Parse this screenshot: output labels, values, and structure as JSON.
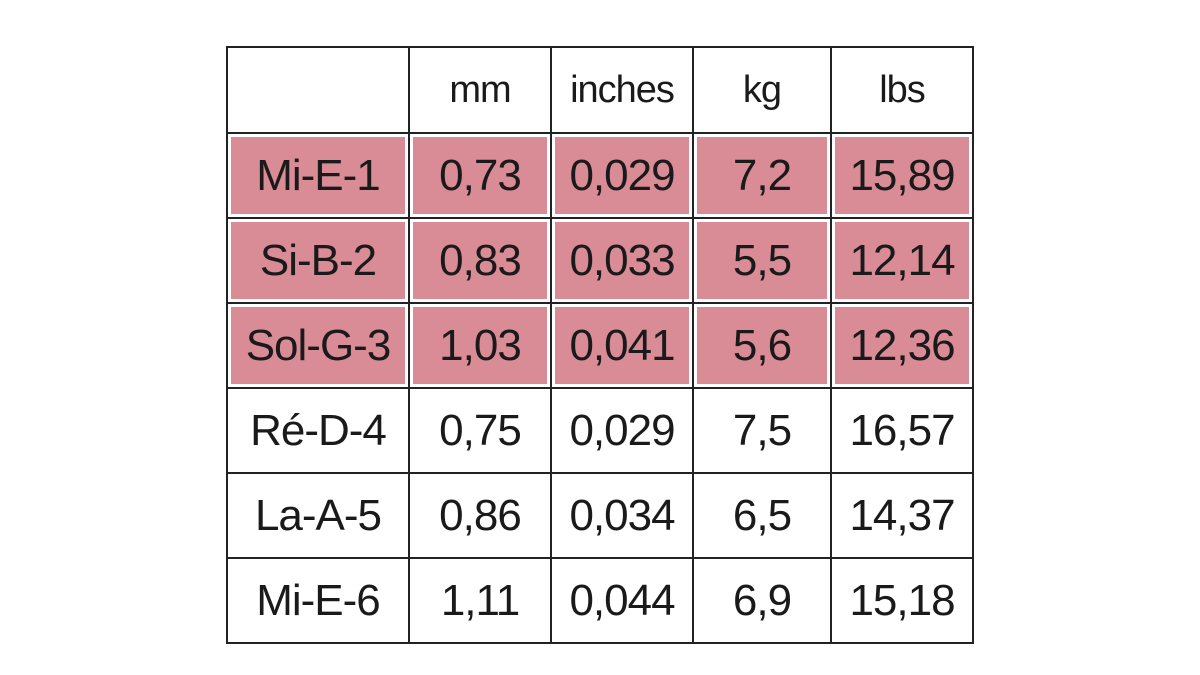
{
  "table": {
    "header": [
      "",
      "mm",
      "inches",
      "kg",
      "lbs"
    ],
    "highlight_color": "#d98b96",
    "rows": [
      {
        "cells": [
          "Mi-E-1",
          "0,73",
          "0,029",
          "7,2",
          "15,89"
        ],
        "highlighted": true
      },
      {
        "cells": [
          "Si-B-2",
          "0,83",
          "0,033",
          "5,5",
          "12,14"
        ],
        "highlighted": true
      },
      {
        "cells": [
          "Sol-G-3",
          "1,03",
          "0,041",
          "5,6",
          "12,36"
        ],
        "highlighted": true
      },
      {
        "cells": [
          "Ré-D-4",
          "0,75",
          "0,029",
          "7,5",
          "16,57"
        ],
        "highlighted": false
      },
      {
        "cells": [
          "La-A-5",
          "0,86",
          "0,034",
          "6,5",
          "14,37"
        ],
        "highlighted": false
      },
      {
        "cells": [
          "Mi-E-6",
          "1,11",
          "0,044",
          "6,9",
          "15,18"
        ],
        "highlighted": false
      }
    ]
  }
}
